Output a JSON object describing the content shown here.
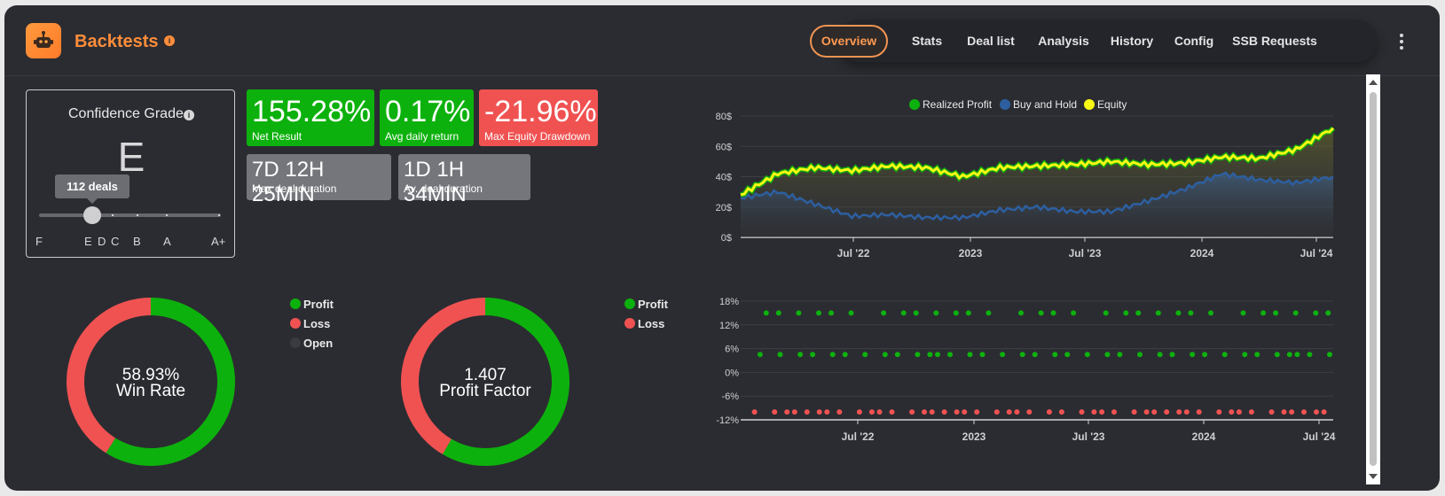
{
  "header": {
    "title": "Backtests",
    "info_glyph": "i",
    "nav": [
      "Overview",
      "Stats",
      "Deal list",
      "Analysis",
      "History",
      "Config",
      "SSB Requests"
    ],
    "active_tab": "Overview"
  },
  "grade": {
    "title": "Confidence Grade",
    "letter": "E",
    "deals_tooltip": "112 deals",
    "scale": [
      "F",
      "E",
      "D",
      "C",
      "B",
      "A",
      "A+"
    ]
  },
  "stats": {
    "net_result": {
      "value": "155.28%",
      "label": "Net Result",
      "color": "#0db10d"
    },
    "avg_daily": {
      "value": "0.17%",
      "label": "Avg daily return",
      "color": "#0db10d"
    },
    "max_dd": {
      "value": "-21.96%",
      "label": "Max Equity Drawdown",
      "color": "#f05252"
    },
    "max_duration": {
      "value": "7D 12H 25MIN",
      "label": "Max deal duration"
    },
    "avg_duration": {
      "value": "1D 1H 34MIN",
      "label": "Av. deal duration"
    }
  },
  "donuts": {
    "win_rate": {
      "value": "58.93%",
      "label": "Win Rate",
      "profit_fraction": 0.5893,
      "legend": [
        {
          "name": "Profit",
          "color": "#0db10d"
        },
        {
          "name": "Loss",
          "color": "#f05252"
        },
        {
          "name": "Open",
          "color": "#3a3b40"
        }
      ]
    },
    "profit_factor": {
      "value": "1.407",
      "label": "Profit Factor",
      "profit_fraction": 0.5845,
      "legend": [
        {
          "name": "Profit",
          "color": "#0db10d"
        },
        {
          "name": "Loss",
          "color": "#f05252"
        }
      ]
    }
  },
  "colors": {
    "profit": "#0db10d",
    "loss": "#f05252",
    "equity": "#f8f815",
    "buy_hold": "#2d5fa0",
    "accent": "#ff8d3a"
  },
  "chart_data": [
    {
      "type": "line",
      "legend": [
        "Realized Profit",
        "Buy and Hold",
        "Equity"
      ],
      "ylim": [
        0,
        80
      ],
      "yticks": [
        "0$",
        "20$",
        "40$",
        "60$",
        "80$"
      ],
      "xticks": [
        "Jul '22",
        "2023",
        "Jul '23",
        "2024",
        "Jul '24"
      ],
      "x_range": [
        "2022-01",
        "2024-08"
      ],
      "series": [
        {
          "name": "Equity",
          "x": [
            "2022-01",
            "2022-03",
            "2022-05",
            "2022-07",
            "2022-09",
            "2022-11",
            "2023-01",
            "2023-03",
            "2023-05",
            "2023-07",
            "2023-09",
            "2023-11",
            "2024-01",
            "2024-03",
            "2024-05",
            "2024-07",
            "2024-08"
          ],
          "values": [
            28,
            42,
            46,
            44,
            47,
            46,
            40,
            46,
            47,
            48,
            50,
            48,
            49,
            53,
            52,
            58,
            72
          ]
        },
        {
          "name": "Buy and Hold",
          "x": [
            "2022-01",
            "2022-03",
            "2022-05",
            "2022-07",
            "2022-09",
            "2022-11",
            "2023-01",
            "2023-03",
            "2023-05",
            "2023-07",
            "2023-09",
            "2023-11",
            "2024-01",
            "2024-03",
            "2024-05",
            "2024-07",
            "2024-08"
          ],
          "values": [
            26,
            30,
            22,
            14,
            15,
            13,
            13,
            18,
            20,
            17,
            17,
            24,
            32,
            42,
            38,
            36,
            40
          ]
        }
      ]
    },
    {
      "type": "scatter",
      "ylim": [
        -12,
        18
      ],
      "yticks": [
        "-12%",
        "-6%",
        "0%",
        "6%",
        "12%",
        "18%"
      ],
      "xticks": [
        "Jul '22",
        "2023",
        "Jul '23",
        "2024",
        "Jul '24"
      ],
      "series": [
        {
          "name": "Profit",
          "values": [
            15,
            15,
            15,
            15,
            15,
            15,
            15,
            15,
            15,
            15,
            15,
            15,
            15,
            15,
            15,
            15,
            15,
            15,
            15,
            15,
            15,
            15,
            15,
            15,
            15,
            15,
            15,
            15,
            15,
            15,
            4.5,
            4.5,
            4.5,
            4.5,
            4.5,
            4.5,
            4.5,
            4.5,
            4.5,
            4.5,
            4.5,
            4.5,
            4.5,
            4.5,
            4.5,
            4.5,
            4.5,
            4.5,
            4.5,
            4.5,
            4.5,
            4.5,
            4.5,
            4.5,
            4.5,
            4.5,
            4.5,
            4.5,
            4.5,
            4.5,
            4.5,
            4.5,
            4.5,
            4.5,
            4.5,
            4.5
          ]
        },
        {
          "name": "Loss",
          "values": [
            -10,
            -10,
            -10,
            -10,
            -10,
            -10,
            -10,
            -10,
            -10,
            -10,
            -10,
            -10,
            -10,
            -10,
            -10,
            -10,
            -10,
            -10,
            -10,
            -10,
            -10,
            -10,
            -10,
            -10,
            -10,
            -10,
            -10,
            -10,
            -10,
            -10,
            -10,
            -10,
            -10,
            -10,
            -10,
            -10,
            -10,
            -10,
            -10,
            -10,
            -10,
            -10,
            -10,
            -10,
            -10,
            -10
          ]
        }
      ]
    }
  ]
}
